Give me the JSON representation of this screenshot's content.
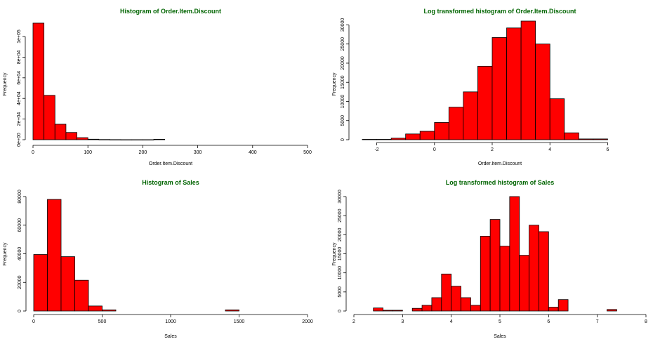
{
  "chart_data": [
    {
      "type": "bar",
      "title": "Histogram of Order.Item.Discount",
      "xlabel": "Order.Item.Discount",
      "ylabel": "Frequency",
      "xlim": [
        0,
        500
      ],
      "ylim": [
        0,
        115000
      ],
      "xticks": [
        0,
        100,
        200,
        300,
        400,
        500
      ],
      "xtick_labels": [
        "0",
        "100",
        "200",
        "300",
        "400",
        "500"
      ],
      "yticks": [
        0,
        20000,
        40000,
        60000,
        80000,
        100000
      ],
      "ytick_labels": [
        "0e+00",
        "2e+04",
        "4e+04",
        "6e+04",
        "8e+04",
        "1e+05"
      ],
      "bin_edges": [
        0,
        20,
        40,
        60,
        80,
        100,
        120,
        140,
        160,
        180,
        200,
        220,
        240,
        260,
        280,
        300,
        320,
        340,
        360,
        380,
        400,
        420,
        440,
        460,
        480,
        500
      ],
      "values": [
        113000,
        43000,
        15000,
        7000,
        2000,
        500,
        200,
        100,
        50,
        50,
        50,
        400,
        0,
        0,
        0,
        0,
        0,
        0,
        0,
        0,
        0,
        0,
        0,
        0,
        0
      ]
    },
    {
      "type": "bar",
      "title": "Log transformed histogram of  Order.Item.Discount",
      "xlabel": "Order.Item.Discount",
      "ylabel": "Frequency",
      "xlim": [
        -2.5,
        6.5
      ],
      "ylim": [
        0,
        31000
      ],
      "xticks": [
        -2,
        0,
        2,
        4,
        6
      ],
      "xtick_labels": [
        "-2",
        "0",
        "2",
        "4",
        "6"
      ],
      "yticks": [
        0,
        5000,
        10000,
        15000,
        20000,
        25000,
        30000
      ],
      "ytick_labels": [
        "0",
        "5000",
        "10000",
        "15000",
        "20000",
        "25000",
        "30000"
      ],
      "bin_edges": [
        -2.5,
        -2,
        -1.5,
        -1,
        -0.5,
        0,
        0.5,
        1,
        1.5,
        2,
        2.5,
        3,
        3.5,
        4,
        4.5,
        5,
        5.5,
        6
      ],
      "values": [
        100,
        100,
        400,
        1500,
        2200,
        4500,
        8500,
        12500,
        19200,
        26700,
        29200,
        31000,
        25000,
        10700,
        1800,
        200,
        200
      ]
    },
    {
      "type": "bar",
      "title": "Histogram of Sales",
      "xlabel": "Sales",
      "ylabel": "Frequency",
      "xlim": [
        0,
        2000
      ],
      "ylim": [
        0,
        80000
      ],
      "xticks": [
        0,
        500,
        1000,
        1500,
        2000
      ],
      "xtick_labels": [
        "0",
        "500",
        "1000",
        "1500",
        "2000"
      ],
      "yticks": [
        0,
        20000,
        40000,
        60000,
        80000
      ],
      "ytick_labels": [
        "0",
        "20000",
        "40000",
        "60000",
        "80000"
      ],
      "bin_edges": [
        0,
        100,
        200,
        300,
        400,
        500,
        600,
        700,
        800,
        900,
        1000,
        1100,
        1200,
        1300,
        1400,
        1500,
        1600,
        1700,
        1800,
        1900,
        2000
      ],
      "values": [
        39500,
        78000,
        38000,
        21500,
        3500,
        800,
        0,
        0,
        0,
        0,
        0,
        0,
        0,
        0,
        800,
        0,
        0,
        0,
        0,
        0
      ]
    },
    {
      "type": "bar",
      "title": "Log transformed histogram of  Sales",
      "xlabel": "Sales",
      "ylabel": "Frequency",
      "xlim": [
        2,
        8
      ],
      "ylim": [
        0,
        30000
      ],
      "xticks": [
        2,
        3,
        4,
        5,
        6,
        7,
        8
      ],
      "xtick_labels": [
        "2",
        "3",
        "4",
        "5",
        "6",
        "7",
        "8"
      ],
      "yticks": [
        0,
        5000,
        10000,
        15000,
        20000,
        25000,
        30000
      ],
      "ytick_labels": [
        "0",
        "5000",
        "10000",
        "15000",
        "20000",
        "25000",
        "30000"
      ],
      "bin_edges": [
        2.2,
        2.4,
        2.6,
        2.8,
        3.0,
        3.2,
        3.4,
        3.6,
        3.8,
        4.0,
        4.2,
        4.4,
        4.6,
        4.8,
        5.0,
        5.2,
        5.4,
        5.6,
        5.8,
        6.0,
        6.2,
        6.4,
        6.6,
        6.8,
        7.0,
        7.2,
        7.4
      ],
      "values": [
        0,
        800,
        200,
        200,
        0,
        700,
        1500,
        3500,
        9700,
        6500,
        3500,
        1500,
        19600,
        24000,
        17000,
        30000,
        14600,
        22500,
        20800,
        1000,
        3000,
        0,
        0,
        0,
        0,
        400
      ]
    }
  ]
}
